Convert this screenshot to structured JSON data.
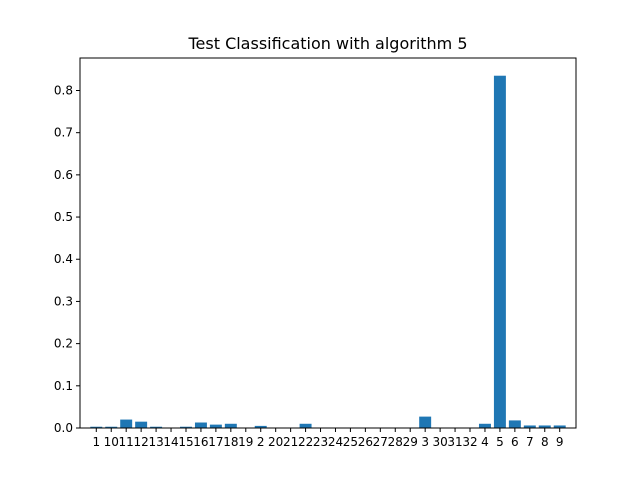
{
  "chart_data": {
    "type": "bar",
    "title": "Test Classification with algorithm 5",
    "xlabel": "",
    "ylabel": "",
    "categories": [
      "1",
      "10",
      "11",
      "12",
      "13",
      "14",
      "15",
      "16",
      "17",
      "18",
      "19",
      "2",
      "20",
      "21",
      "22",
      "23",
      "24",
      "25",
      "26",
      "27",
      "28",
      "29",
      "3",
      "30",
      "31",
      "32",
      "4",
      "5",
      "6",
      "7",
      "8",
      "9"
    ],
    "values": [
      0.003,
      0.003,
      0.02,
      0.015,
      0.003,
      0.001,
      0.003,
      0.013,
      0.008,
      0.01,
      0.001,
      0.005,
      0.001,
      0.001,
      0.01,
      0.001,
      0.001,
      0.001,
      0.001,
      0.001,
      0.001,
      0.001,
      0.027,
      0.001,
      0.001,
      0.001,
      0.01,
      0.835,
      0.018,
      0.006,
      0.006,
      0.006
    ],
    "ylim": [
      0,
      0.877
    ],
    "yticks": [
      0.0,
      0.1,
      0.2,
      0.3,
      0.4,
      0.5,
      0.6,
      0.7,
      0.8
    ],
    "ytick_labels": [
      "0.0",
      "0.1",
      "0.2",
      "0.3",
      "0.4",
      "0.5",
      "0.6",
      "0.7",
      "0.8"
    ],
    "bar_color": "#1f77b4",
    "grid": false,
    "legend": "none"
  }
}
